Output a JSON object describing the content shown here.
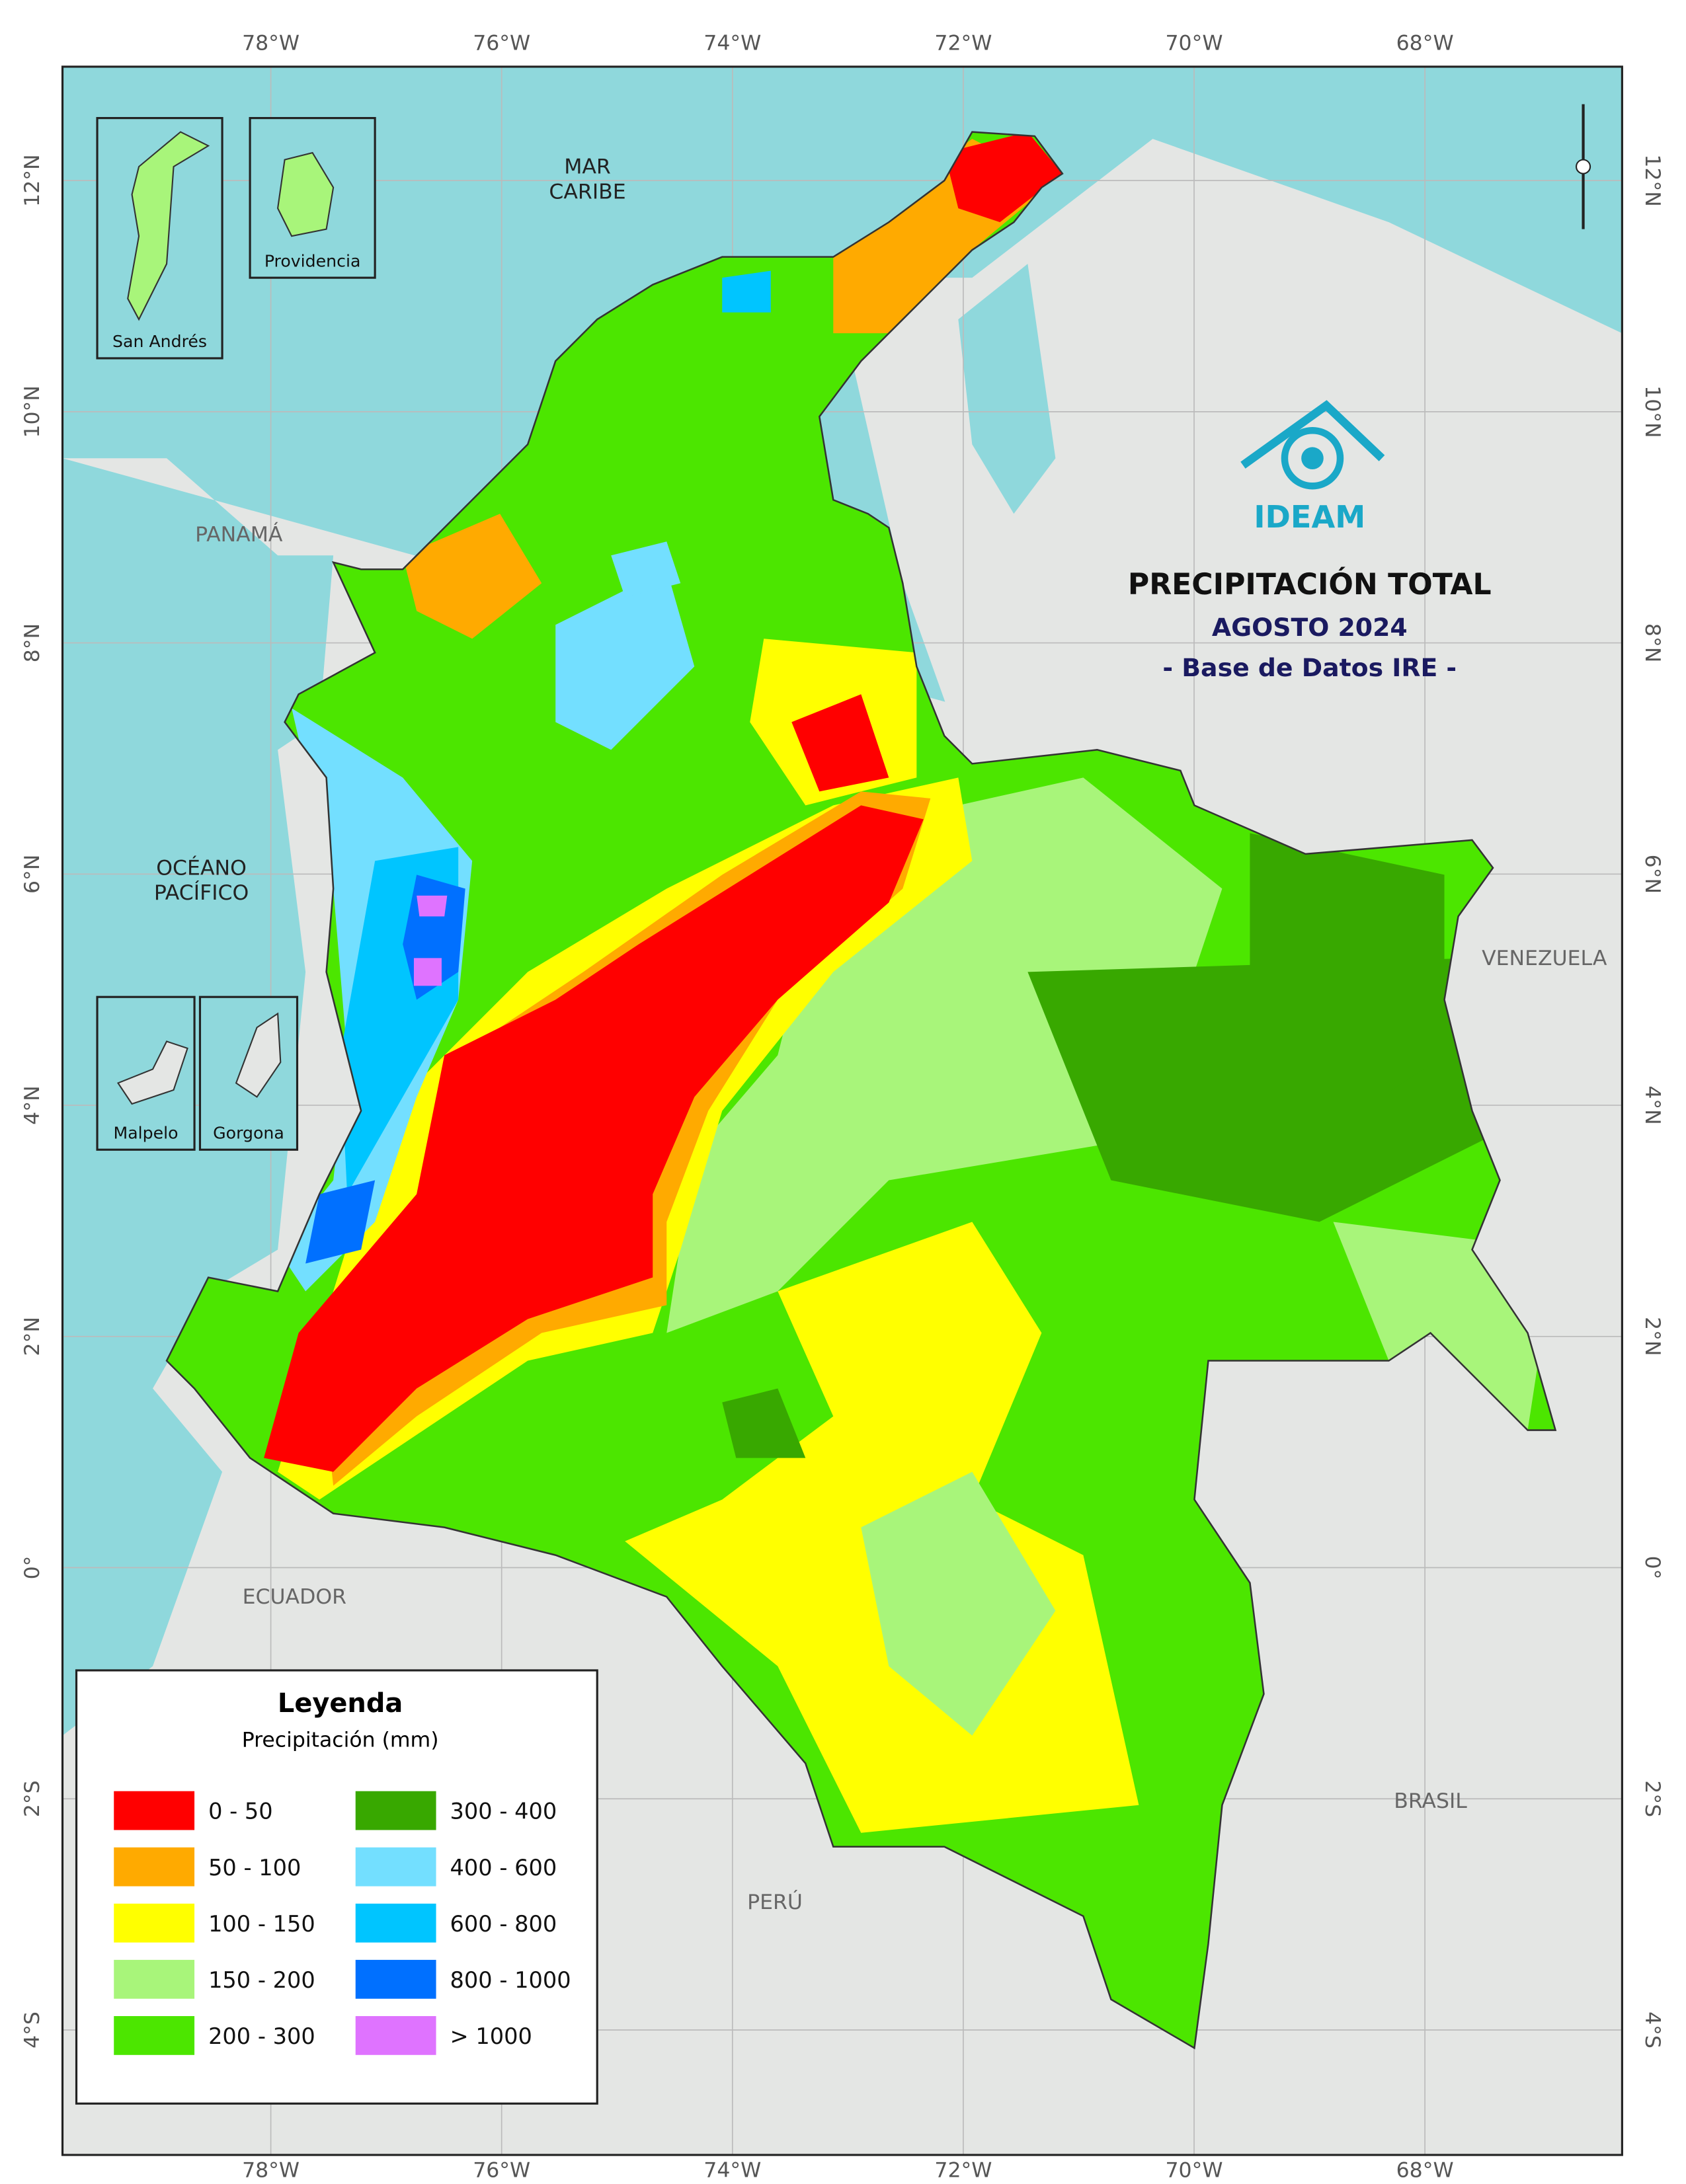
{
  "map": {
    "title": "PRECIPITACIÓN TOTAL",
    "subtitle": "AGOSTO 2024",
    "source": "- Base de Datos IRE -",
    "logo": "IDEAM",
    "lon_labels": [
      "78°W",
      "76°W",
      "74°W",
      "72°W",
      "70°W",
      "68°W"
    ],
    "lat_labels": [
      "12°N",
      "10°N",
      "8°N",
      "6°N",
      "4°N",
      "2°N",
      "0°",
      "2°S",
      "4°S"
    ],
    "places": [
      [
        "MAR",
        "CARIBE"
      ],
      [
        "PANAMÁ"
      ],
      [
        "OCÉANO",
        "PACÍFICO"
      ],
      [
        "VENEZUELA"
      ],
      [
        "ECUADOR"
      ],
      [
        "BRASIL"
      ],
      [
        "PERÚ"
      ]
    ],
    "insets": [
      "San Andrés",
      "Providencia",
      "Malpelo",
      "Gorgona"
    ],
    "legend": {
      "title": "Leyenda",
      "subtitle": "Precipitación (mm)",
      "classes": [
        {
          "label": "0 - 50",
          "color": "#ff0000"
        },
        {
          "label": "50 - 100",
          "color": "#ffaa00"
        },
        {
          "label": "100 - 150",
          "color": "#ffff00"
        },
        {
          "label": "150 - 200",
          "color": "#a8f57a"
        },
        {
          "label": "200 - 300",
          "color": "#4ce600"
        },
        {
          "label": "300 - 400",
          "color": "#38a800"
        },
        {
          "label": "400 - 600",
          "color": "#73dfff"
        },
        {
          "label": "600 - 800",
          "color": "#00c5ff"
        },
        {
          "label": "800 - 1000",
          "color": "#0070ff"
        },
        {
          "label": "> 1000",
          "color": "#df73ff"
        }
      ]
    }
  }
}
